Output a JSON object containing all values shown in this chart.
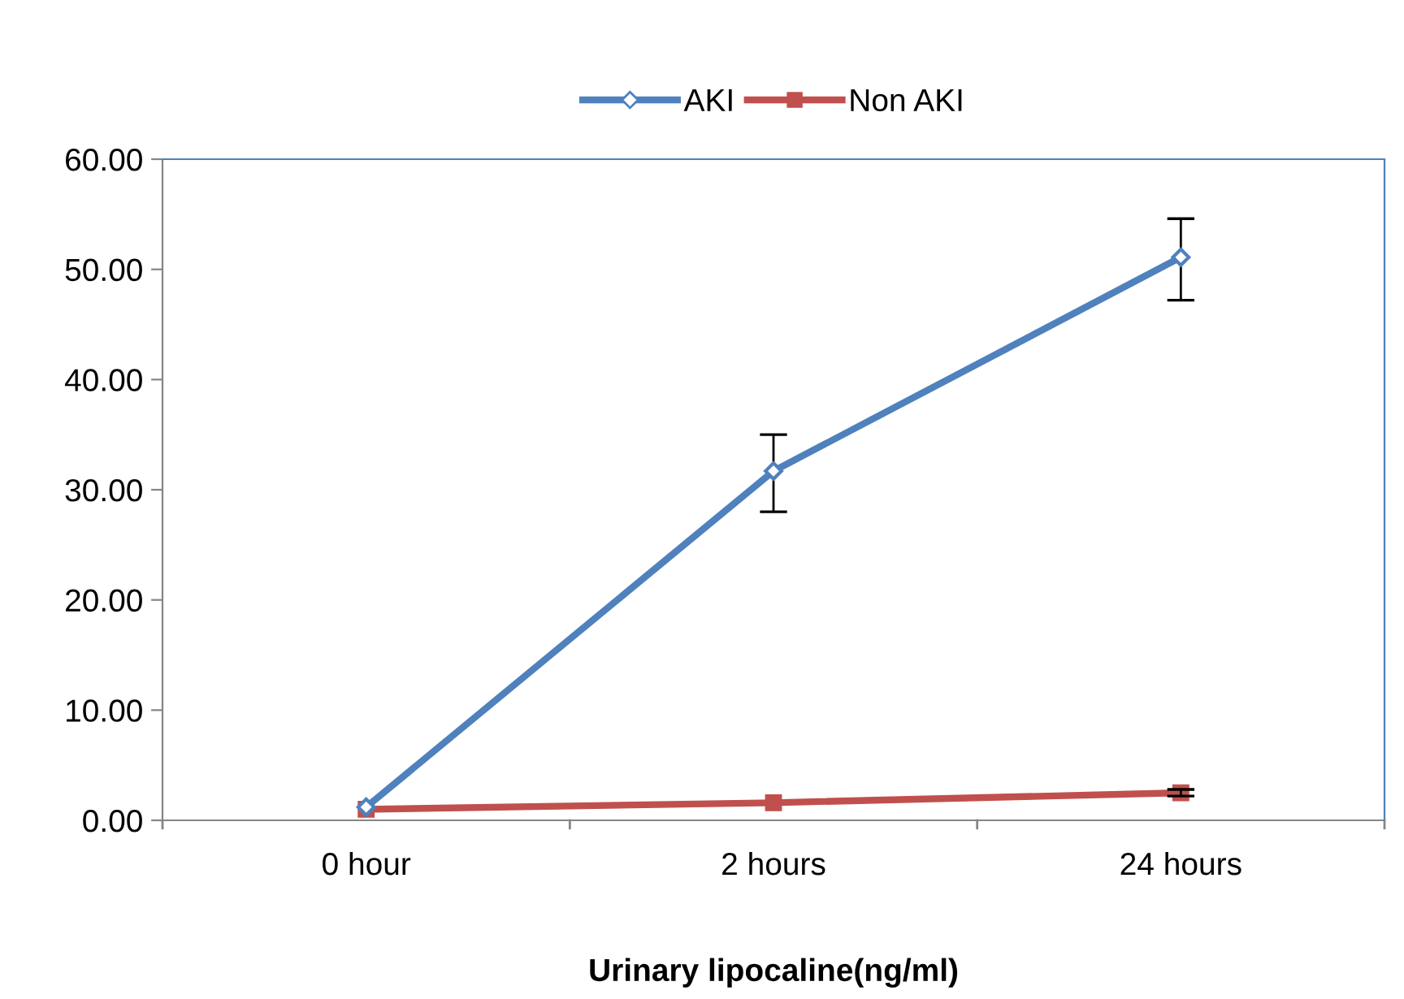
{
  "chart_data": {
    "type": "line",
    "xlabel": "Urinary lipocaline(ng/ml)",
    "categories": [
      "0 hour",
      "2 hours",
      "24 hours"
    ],
    "series": [
      {
        "name": "AKI",
        "color": "#4f81bd",
        "marker": "diamond",
        "values": [
          1.2,
          31.7,
          51.1
        ],
        "errors": [
          null,
          [
            28.0,
            35.0
          ],
          [
            47.2,
            54.6
          ]
        ]
      },
      {
        "name": "Non AKI",
        "color": "#c0504d",
        "marker": "square",
        "values": [
          1.0,
          1.6,
          2.5
        ],
        "errors": [
          null,
          null,
          [
            2.2,
            2.8
          ]
        ]
      }
    ],
    "ylim": [
      0,
      60
    ],
    "yticks": [
      {
        "value": 0,
        "label": "0.00"
      },
      {
        "value": 10,
        "label": "10.00"
      },
      {
        "value": 20,
        "label": "20.00"
      },
      {
        "value": 30,
        "label": "30.00"
      },
      {
        "value": 40,
        "label": "40.00"
      },
      {
        "value": 50,
        "label": "50.00"
      },
      {
        "value": 60,
        "label": "60.00"
      }
    ],
    "grid": false,
    "legend": "top"
  }
}
